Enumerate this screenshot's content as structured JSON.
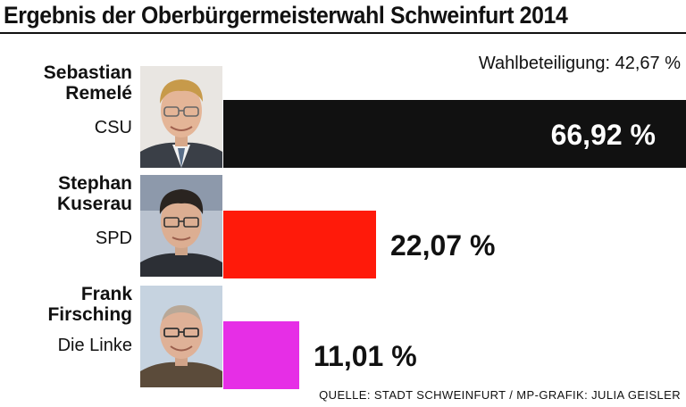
{
  "header": {
    "title": "Ergebnis der Oberbürgermeisterwahl Schweinfurt 2014",
    "turnout": "Wahlbeteiligung: 42,67 %"
  },
  "candidates": [
    {
      "name_line1": "Sebastian",
      "name_line2": "Remelé",
      "party": "CSU"
    },
    {
      "name_line1": "Stephan",
      "name_line2": "Kuserau",
      "party": "SPD"
    },
    {
      "name_line1": "Frank",
      "name_line2": "Firsching",
      "party": "Die Linke"
    }
  ],
  "footer": {
    "source": "QUELLE: STADT SCHWEINFURT / MP-GRAFIK: JULIA GEISLER"
  },
  "chart_data": {
    "type": "bar",
    "orientation": "horizontal",
    "categories": [
      "Sebastian Remelé",
      "Stephan Kuserau",
      "Frank Firsching"
    ],
    "values": [
      66.92,
      22.07,
      11.01
    ],
    "value_labels": [
      "66,92 %",
      "22,07 %",
      "11,01 %"
    ],
    "colors": [
      "#111111",
      "#ff1a0a",
      "#e62ee6"
    ],
    "label_colors": [
      "#ffffff",
      "#111111",
      "#111111"
    ],
    "title": "Ergebnis der Oberbürgermeisterwahl Schweinfurt 2014",
    "xlim": [
      0,
      66.92
    ],
    "grid": false,
    "legend": "none"
  }
}
